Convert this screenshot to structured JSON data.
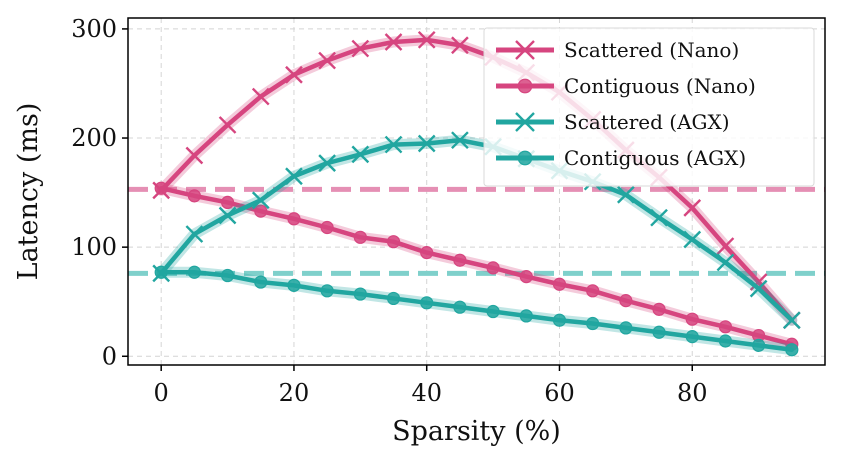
{
  "chart_data": {
    "type": "line",
    "title": "",
    "xlabel": "Sparsity (%)",
    "ylabel": "Latency (ms)",
    "xlim": [
      -5,
      100
    ],
    "ylim": [
      -8,
      310
    ],
    "xticks": [
      0,
      20,
      40,
      60,
      80
    ],
    "yticks": [
      0,
      100,
      200,
      300
    ],
    "grid": true,
    "legend_position": "top-right",
    "x": [
      0,
      5,
      10,
      15,
      20,
      25,
      30,
      35,
      40,
      45,
      50,
      55,
      60,
      65,
      70,
      75,
      80,
      85,
      90,
      95
    ],
    "series": [
      {
        "name": "Scattered (Nano)",
        "marker": "x",
        "color": "#d6457f",
        "values": [
          152,
          184,
          212,
          238,
          258,
          271,
          282,
          288,
          290,
          285,
          274,
          260,
          242,
          217,
          189,
          164,
          136,
          101,
          68,
          33
        ]
      },
      {
        "name": "Contiguous (Nano)",
        "marker": "o",
        "color": "#d6457f",
        "values": [
          154,
          147,
          141,
          133,
          126,
          118,
          109,
          105,
          95,
          88,
          81,
          73,
          66,
          60,
          51,
          43,
          34,
          27,
          19,
          11
        ]
      },
      {
        "name": "Scattered (AGX)",
        "marker": "x",
        "color": "#21a6a0",
        "values": [
          76,
          112,
          129,
          143,
          165,
          177,
          185,
          194,
          195,
          198,
          192,
          181,
          170,
          160,
          148,
          127,
          107,
          86,
          62,
          33
        ]
      },
      {
        "name": "Contiguous (AGX)",
        "marker": "o",
        "color": "#21a6a0",
        "values": [
          77,
          77,
          74,
          68,
          65,
          60,
          57,
          53,
          49,
          45,
          41,
          37,
          33,
          30,
          26,
          22,
          18,
          14,
          10,
          6
        ]
      }
    ],
    "reference_lines": [
      {
        "y": 153,
        "color": "#e58fb4",
        "style": "dashed"
      },
      {
        "y": 76,
        "color": "#7fd0cb",
        "style": "dashed"
      }
    ]
  }
}
